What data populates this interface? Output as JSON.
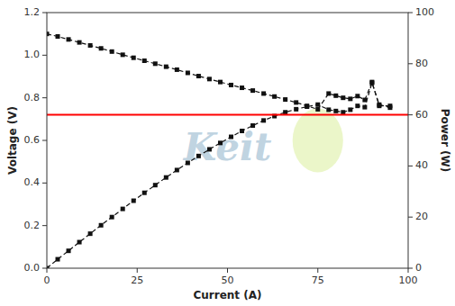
{
  "chart_data": {
    "type": "line",
    "xlabel": "Current (A)",
    "ylabel": "Voltage (V)",
    "y2label": "Power (W)",
    "x": [
      0,
      3,
      6,
      9,
      12,
      15,
      18,
      21,
      24,
      27,
      30,
      33,
      36,
      39,
      42,
      45,
      48,
      51,
      54,
      57,
      60,
      63,
      66,
      69,
      72,
      75,
      78,
      80,
      82,
      84,
      86,
      88,
      90,
      92,
      95
    ],
    "series": [
      {
        "color": "#111111",
        "marker": "square",
        "line_style": "dashed",
        "axis": "y",
        "values": [
          1.1,
          1.088,
          1.074,
          1.06,
          1.046,
          1.032,
          1.017,
          1.002,
          0.988,
          0.974,
          0.96,
          0.946,
          0.932,
          0.917,
          0.902,
          0.888,
          0.874,
          0.86,
          0.847,
          0.834,
          0.82,
          0.806,
          0.792,
          0.778,
          0.762,
          0.746,
          0.82,
          0.81,
          0.8,
          0.795,
          0.808,
          0.79,
          0.874,
          0.762,
          0.762
        ]
      },
      {
        "color": "#111111",
        "marker": "square",
        "line_style": "dashed",
        "axis": "y2",
        "values": [
          0.0,
          3.5,
          6.8,
          10.2,
          13.5,
          16.8,
          20.0,
          23.2,
          26.4,
          29.5,
          32.5,
          35.5,
          38.4,
          41.2,
          43.9,
          46.5,
          49.0,
          51.4,
          53.7,
          55.8,
          57.8,
          59.5,
          61.0,
          62.2,
          63.2,
          64.0,
          62.0,
          61.5,
          61.0,
          62.0,
          63.5,
          63.0,
          72.5,
          64.0,
          62.8
        ]
      }
    ],
    "hlines": [
      {
        "value": 0.72,
        "color": "red",
        "axis": "y"
      }
    ],
    "ellipses": [
      {
        "x": 75,
        "y": 0.6,
        "width": 14,
        "height": 0.3,
        "color": "#e8f5c0",
        "axis": "y"
      }
    ],
    "annotations": [
      {
        "text": "Keit",
        "color": "#b8cedd"
      }
    ],
    "xlim": [
      0,
      100
    ],
    "xticks": [
      0,
      25,
      50,
      75,
      100
    ],
    "ylim": [
      0.0,
      1.2
    ],
    "yticks": [
      {
        "value": 0.0,
        "label": "0.0"
      },
      0.2,
      0.4,
      0.6,
      0.8,
      {
        "value": 1.0,
        "label": "1.0"
      },
      1.2
    ],
    "y2lim": [
      0,
      100
    ],
    "y2ticks": [
      0,
      20,
      40,
      60,
      80,
      100
    ],
    "grid": false
  }
}
